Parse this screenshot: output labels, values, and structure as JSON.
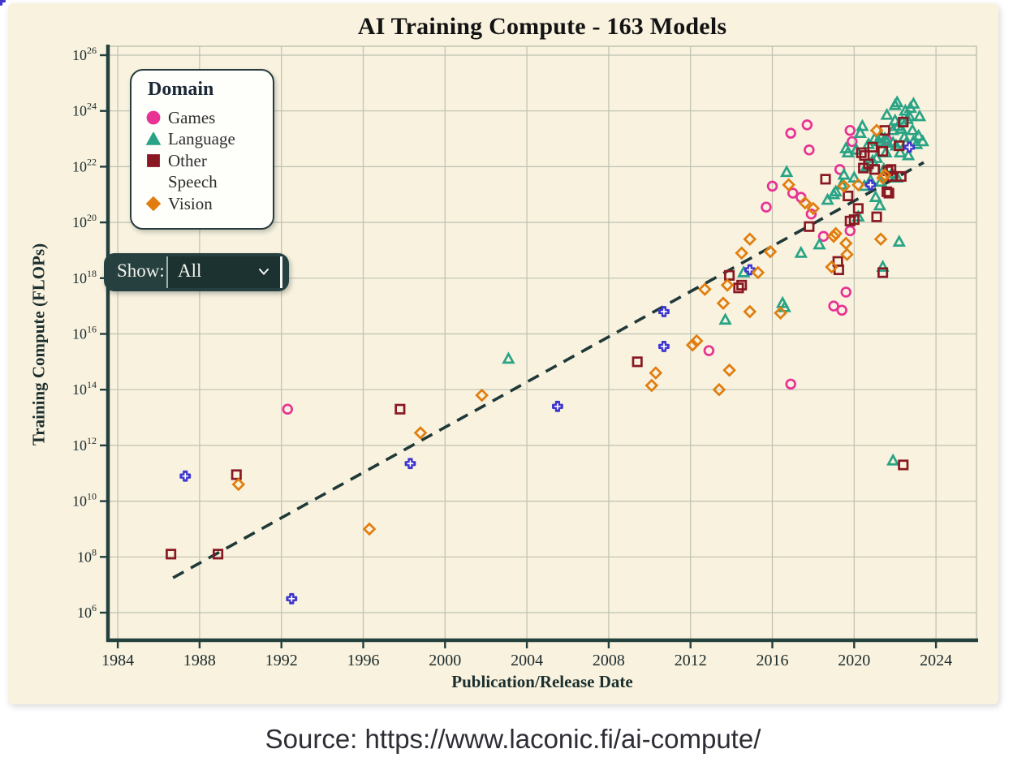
{
  "title": "AI Training Compute - 163 Models",
  "source": "Source: https://www.laconic.fi/ai-compute/",
  "controls": {
    "show_label": "Show:",
    "show_value": "All"
  },
  "colors": {
    "panel_background": "#f8f2df",
    "axis": "#24403d",
    "grid": "#bfc1b0",
    "trend_line": "#1f3938",
    "games": "#e83294",
    "language": "#29a385",
    "other": "#8a1822",
    "speech": "#4037cf",
    "vision": "#e17d0e"
  },
  "legend": {
    "title": "Domain",
    "items": [
      {
        "label": "Games",
        "marker": "circle",
        "color": "#e83294"
      },
      {
        "label": "Language",
        "marker": "triangle",
        "color": "#29a385"
      },
      {
        "label": "Other",
        "marker": "square",
        "color": "#8a1822"
      },
      {
        "label": "Speech",
        "marker": "plus",
        "color": "#4037cf"
      },
      {
        "label": "Vision",
        "marker": "diamond",
        "color": "#e17d0e"
      }
    ]
  },
  "chart_data": {
    "type": "scatter",
    "title": "AI Training Compute - 163 Models",
    "xlabel": "Publication/Release Date",
    "ylabel": "Training Compute (FLOPs)",
    "x_ticks": [
      1984,
      1988,
      1992,
      1996,
      2000,
      2004,
      2008,
      2012,
      2016,
      2020,
      2024
    ],
    "y_tick_exponents": [
      6,
      8,
      10,
      12,
      14,
      16,
      18,
      20,
      22,
      24,
      26
    ],
    "xlim": [
      1983.52,
      2025.98
    ],
    "ylim_exponents": [
      5.01,
      26.32
    ],
    "grid": true,
    "legend_position": "top-left",
    "y_scale": "log10",
    "total_models": 163,
    "trend_line": {
      "style": "dashed",
      "x1_year": 1986.7,
      "y1_exponent": 7.25,
      "x2_year": 2023.4,
      "y2_exponent": 22.15
    },
    "series": [
      {
        "name": "Games",
        "marker": "circle",
        "color": "#e83294",
        "points": [
          [
            1992.3,
            13.3
          ],
          [
            2012.9,
            15.4
          ],
          [
            2016.9,
            14.2
          ],
          [
            2016.9,
            23.2
          ],
          [
            2017.7,
            23.5
          ],
          [
            2017.8,
            22.6
          ],
          [
            2016.0,
            21.3
          ],
          [
            2017.0,
            21.05
          ],
          [
            2017.4,
            20.9
          ],
          [
            2015.7,
            20.55
          ],
          [
            2017.9,
            20.3
          ],
          [
            2019.3,
            21.9
          ],
          [
            2019.8,
            23.3
          ],
          [
            2019.9,
            22.9
          ],
          [
            2021.6,
            22.95
          ],
          [
            2019.6,
            17.5
          ],
          [
            2019.0,
            17.0
          ],
          [
            2019.4,
            16.85
          ],
          [
            2018.5,
            19.5
          ],
          [
            2019.8,
            19.7
          ]
        ]
      },
      {
        "name": "Language",
        "marker": "triangle",
        "color": "#29a385",
        "points": [
          [
            2003.1,
            15.1
          ],
          [
            2013.7,
            16.5
          ],
          [
            2014.6,
            18.2
          ],
          [
            2016.5,
            17.1
          ],
          [
            2016.6,
            16.95
          ],
          [
            2017.4,
            18.9
          ],
          [
            2018.3,
            19.2
          ],
          [
            2022.2,
            19.3
          ],
          [
            2021.4,
            18.4
          ],
          [
            2016.7,
            21.8
          ],
          [
            2018.7,
            20.8
          ],
          [
            2019.0,
            21.0
          ],
          [
            2019.4,
            21.35
          ],
          [
            2019.1,
            21.1
          ],
          [
            2019.5,
            21.7
          ],
          [
            2020.0,
            21.6
          ],
          [
            2019.6,
            22.65
          ],
          [
            2020.4,
            23.45
          ],
          [
            2020.3,
            23.2
          ],
          [
            2019.7,
            22.5
          ],
          [
            2020.1,
            22.6
          ],
          [
            2021.9,
            11.45
          ],
          [
            2020.2,
            20.2
          ],
          [
            2021.5,
            23.0
          ],
          [
            2021.6,
            22.9
          ],
          [
            2021.9,
            23.3
          ],
          [
            2022.0,
            23.65
          ],
          [
            2022.3,
            23.35
          ],
          [
            2022.0,
            24.2
          ],
          [
            2022.1,
            24.3
          ],
          [
            2021.6,
            23.85
          ],
          [
            2022.35,
            23.6
          ],
          [
            2022.15,
            23.45
          ],
          [
            2021.9,
            22.85
          ],
          [
            2022.05,
            22.75
          ],
          [
            2022.25,
            22.5
          ],
          [
            2021.55,
            22.5
          ],
          [
            2022.45,
            23.05
          ],
          [
            2022.55,
            22.85
          ],
          [
            2022.65,
            22.4
          ],
          [
            2021.45,
            21.9
          ],
          [
            2021.85,
            21.75
          ],
          [
            2022.1,
            21.6
          ],
          [
            2021.3,
            21.45
          ],
          [
            2020.8,
            21.5
          ],
          [
            2020.9,
            22.2
          ],
          [
            2021.1,
            22.3
          ],
          [
            2021.2,
            22.9
          ],
          [
            2021.3,
            23.1
          ],
          [
            2021.0,
            23.0
          ],
          [
            2020.7,
            22.8
          ],
          [
            2020.6,
            22.0
          ],
          [
            2020.5,
            21.3
          ],
          [
            2021.05,
            20.9
          ],
          [
            2021.25,
            20.6
          ],
          [
            2022.5,
            24.0
          ],
          [
            2022.7,
            23.8
          ],
          [
            2022.85,
            23.3
          ],
          [
            2022.9,
            22.9
          ],
          [
            2023.05,
            22.8
          ],
          [
            2023.15,
            23.1
          ],
          [
            2022.75,
            24.1
          ],
          [
            2022.9,
            24.25
          ],
          [
            2023.2,
            23.8
          ],
          [
            2022.6,
            23.7
          ],
          [
            2023.35,
            22.9
          ]
        ]
      },
      {
        "name": "Other",
        "marker": "square",
        "color": "#8a1822",
        "points": [
          [
            1986.6,
            8.1
          ],
          [
            1988.9,
            8.1
          ],
          [
            1989.8,
            10.95
          ],
          [
            1997.8,
            13.3
          ],
          [
            2009.4,
            15.0
          ],
          [
            2013.9,
            18.1
          ],
          [
            2014.35,
            17.65
          ],
          [
            2014.5,
            17.75
          ],
          [
            2017.8,
            19.85
          ],
          [
            2018.6,
            21.55
          ],
          [
            2019.7,
            20.95
          ],
          [
            2020.2,
            20.5
          ],
          [
            2020.35,
            22.5
          ],
          [
            2020.7,
            22.1
          ],
          [
            2020.9,
            22.7
          ],
          [
            2020.0,
            20.1
          ],
          [
            2019.8,
            20.05
          ],
          [
            2021.1,
            20.2
          ],
          [
            2021.6,
            21.1
          ],
          [
            2021.7,
            21.05
          ],
          [
            2022.4,
            23.6
          ],
          [
            2021.5,
            23.3
          ],
          [
            2022.2,
            22.75
          ],
          [
            2021.4,
            22.55
          ],
          [
            2021.8,
            21.9
          ],
          [
            2022.3,
            21.65
          ],
          [
            2021.0,
            21.9
          ],
          [
            2021.65,
            21.85
          ],
          [
            2021.85,
            21.65
          ],
          [
            2020.45,
            21.95
          ],
          [
            2019.2,
            18.6
          ],
          [
            2019.25,
            18.3
          ],
          [
            2021.4,
            18.2
          ],
          [
            2022.4,
            11.3
          ],
          [
            2020.5,
            22.4
          ]
        ]
      },
      {
        "name": "Speech",
        "marker": "plus",
        "color": "#4037cf",
        "points": [
          [
            1987.3,
            10.9
          ],
          [
            1992.5,
            6.5
          ],
          [
            1998.3,
            11.35
          ],
          [
            2005.5,
            13.4
          ],
          [
            2010.7,
            16.8
          ],
          [
            2010.7,
            15.55
          ],
          [
            2014.9,
            18.3
          ],
          [
            2020.8,
            21.35
          ],
          [
            2022.7,
            22.7
          ]
        ]
      },
      {
        "name": "Vision",
        "marker": "diamond",
        "color": "#e17d0e",
        "points": [
          [
            1989.9,
            10.6
          ],
          [
            1996.3,
            9.0
          ],
          [
            1998.8,
            12.45
          ],
          [
            2001.8,
            13.8
          ],
          [
            2010.3,
            14.6
          ],
          [
            2010.1,
            14.15
          ],
          [
            2012.1,
            15.6
          ],
          [
            2012.3,
            15.75
          ],
          [
            2013.9,
            14.7
          ],
          [
            2013.4,
            14.0
          ],
          [
            2012.7,
            17.6
          ],
          [
            2013.6,
            17.1
          ],
          [
            2013.8,
            17.75
          ],
          [
            2014.9,
            16.8
          ],
          [
            2016.4,
            16.75
          ],
          [
            2014.5,
            18.9
          ],
          [
            2014.9,
            19.4
          ],
          [
            2015.9,
            18.95
          ],
          [
            2015.3,
            18.2
          ],
          [
            2016.8,
            21.35
          ],
          [
            2017.6,
            20.7
          ],
          [
            2018.0,
            20.5
          ],
          [
            2019.5,
            21.3
          ],
          [
            2020.2,
            21.35
          ],
          [
            2021.1,
            23.3
          ],
          [
            2021.5,
            21.7
          ],
          [
            2019.1,
            19.6
          ],
          [
            2021.3,
            19.4
          ],
          [
            2021.4,
            21.6
          ],
          [
            2019.6,
            19.25
          ],
          [
            2019.65,
            18.85
          ],
          [
            2019.0,
            19.5
          ],
          [
            2018.9,
            18.4
          ]
        ]
      }
    ]
  }
}
